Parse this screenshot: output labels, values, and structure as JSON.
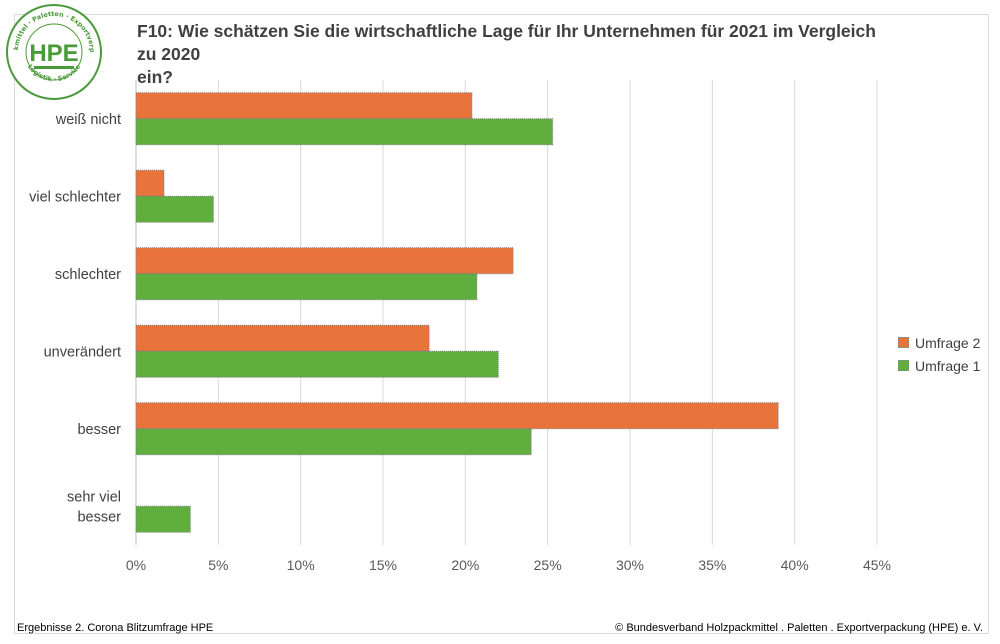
{
  "logo": {
    "text": "HPE",
    "ring_top": "Holzpackmittel · Paletten · Exportverpackung",
    "ring_bottom": "Logistik · Service",
    "color": "#4a9a3a"
  },
  "header": {
    "title_line1": "F10: Wie schätzen Sie die wirtschaftliche Lage für Ihr Unternehmen für 2021 im Vergleich zu 2020",
    "title_line2": "ein?"
  },
  "footer": {
    "left": "Ergebnisse 2. Corona Blitzumfrage HPE",
    "right": "© Bundesverband Holzpackmittel . Paletten . Exportverpackung (HPE) e. V."
  },
  "chart_data": {
    "type": "bar",
    "orientation": "horizontal",
    "title": "F10: Wie schätzen Sie die wirtschaftliche Lage für Ihr Unternehmen für 2021 im Vergleich zu 2020 ein?",
    "categories": [
      "weiß nicht",
      "viel schlechter",
      "schlechter",
      "unverändert",
      "besser",
      "sehr viel besser"
    ],
    "category_lines": [
      [
        "weiß nicht"
      ],
      [
        "viel schlechter"
      ],
      [
        "schlechter"
      ],
      [
        "unverändert"
      ],
      [
        "besser"
      ],
      [
        "sehr viel",
        "besser"
      ]
    ],
    "series": [
      {
        "name": "Umfrage 2",
        "color": "#e8743b",
        "values": [
          20.4,
          1.7,
          22.9,
          17.8,
          39.0,
          0.0
        ]
      },
      {
        "name": "Umfrage 1",
        "color": "#5fae3e",
        "values": [
          25.3,
          4.7,
          20.7,
          22.0,
          24.0,
          3.3
        ]
      }
    ],
    "xlim": [
      0,
      45
    ],
    "xticks": [
      0,
      5,
      10,
      15,
      20,
      25,
      30,
      35,
      40,
      45
    ],
    "xtick_labels": [
      "0%",
      "5%",
      "10%",
      "15%",
      "20%",
      "25%",
      "30%",
      "35%",
      "40%",
      "45%"
    ],
    "xlabel": "",
    "ylabel": "",
    "grid": true,
    "legend_position": "right"
  }
}
